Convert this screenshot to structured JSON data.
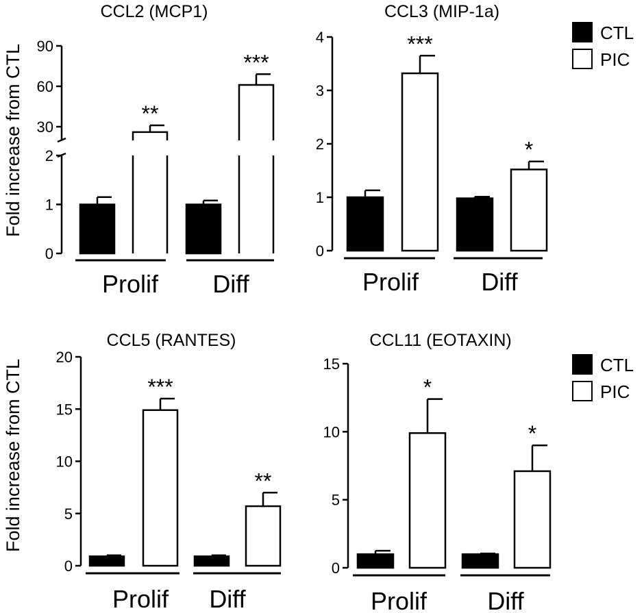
{
  "figure": {
    "y_axis_label": "Fold increase from CTL",
    "legend": [
      {
        "name": "CTL",
        "color": "#000000"
      },
      {
        "name": "PIC",
        "color": "#ffffff"
      }
    ]
  },
  "chart_data": [
    {
      "type": "bar",
      "title": "CCL2 (MCP1)",
      "ylabel": "Fold increase from CTL",
      "broken_axis": true,
      "lower_range": [
        0,
        2
      ],
      "upper_range": [
        30,
        90
      ],
      "yticks_lower": [
        "0",
        "1",
        "2"
      ],
      "yticks_upper": [
        "30",
        "60",
        "90"
      ],
      "groups": [
        "Prolif",
        "Diff"
      ],
      "series": [
        {
          "name": "CTL",
          "values": [
            1.0,
            1.0
          ],
          "errors": [
            0.15,
            0.08
          ],
          "sig": [
            "",
            ""
          ]
        },
        {
          "name": "PIC",
          "values": [
            26,
            61
          ],
          "errors": [
            5,
            8
          ],
          "sig": [
            "**",
            "***"
          ]
        }
      ]
    },
    {
      "type": "bar",
      "title": "CCL3 (MIP-1a)",
      "ylabel": "",
      "ylim": [
        0,
        4
      ],
      "yticks": [
        "0",
        "1",
        "2",
        "3",
        "4"
      ],
      "groups": [
        "Prolif",
        "Diff"
      ],
      "series": [
        {
          "name": "CTL",
          "values": [
            1.0,
            0.98
          ],
          "errors": [
            0.13,
            0.03
          ],
          "sig": [
            "",
            ""
          ]
        },
        {
          "name": "PIC",
          "values": [
            3.32,
            1.52
          ],
          "errors": [
            0.33,
            0.15
          ],
          "sig": [
            "***",
            "*"
          ]
        }
      ]
    },
    {
      "type": "bar",
      "title": "CCL5 (RANTES)",
      "ylabel": "Fold increase from CTL",
      "ylim": [
        0,
        20
      ],
      "yticks": [
        "0",
        "5",
        "10",
        "15",
        "20"
      ],
      "groups": [
        "Prolif",
        "Diff"
      ],
      "series": [
        {
          "name": "CTL",
          "values": [
            0.9,
            0.9
          ],
          "errors": [
            0.1,
            0.1
          ],
          "sig": [
            "",
            ""
          ]
        },
        {
          "name": "PIC",
          "values": [
            14.9,
            5.7
          ],
          "errors": [
            1.1,
            1.3
          ],
          "sig": [
            "***",
            "**"
          ]
        }
      ]
    },
    {
      "type": "bar",
      "title": "CCL11 (EOTAXIN)",
      "ylabel": "",
      "ylim": [
        0,
        15
      ],
      "yticks": [
        "0",
        "5",
        "10",
        "15"
      ],
      "groups": [
        "Prolif",
        "Diff"
      ],
      "series": [
        {
          "name": "CTL",
          "values": [
            1.0,
            1.0
          ],
          "errors": [
            0.25,
            0.05
          ],
          "sig": [
            "",
            ""
          ]
        },
        {
          "name": "PIC",
          "values": [
            9.9,
            7.1
          ],
          "errors": [
            2.5,
            1.9
          ],
          "sig": [
            "*",
            "*"
          ]
        }
      ]
    }
  ]
}
